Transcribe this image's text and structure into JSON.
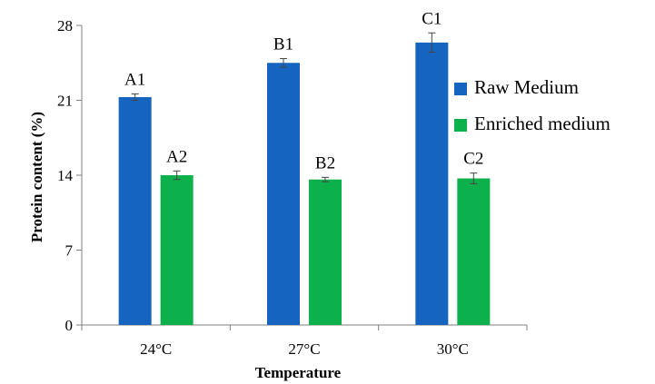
{
  "chart_data": {
    "type": "bar",
    "categories": [
      "24°C",
      "27°C",
      "30°C"
    ],
    "series": [
      {
        "name": "Raw Medium",
        "color": "#1565C0",
        "values": [
          21.3,
          24.5,
          26.4
        ],
        "errors": [
          0.3,
          0.4,
          0.9
        ],
        "labels": [
          "A1",
          "B1",
          "C1"
        ]
      },
      {
        "name": "Enriched medium",
        "color": "#0DB14B",
        "values": [
          14.0,
          13.6,
          13.7
        ],
        "errors": [
          0.4,
          0.2,
          0.5
        ],
        "labels": [
          "A2",
          "B2",
          "C2"
        ]
      }
    ],
    "xlabel": "Temperature",
    "ylabel": "Protein content (%)",
    "ylim": [
      0,
      28
    ],
    "yticks": [
      0,
      7,
      14,
      21,
      28
    ],
    "grid": false,
    "legend": "right"
  }
}
